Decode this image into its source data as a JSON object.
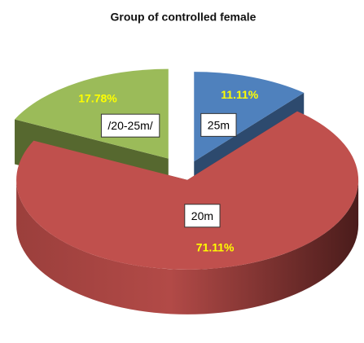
{
  "chart_data": {
    "type": "pie",
    "title": "Group of controlled female",
    "categories": [
      "25m",
      "20m",
      "/20-25m/"
    ],
    "values": [
      11.11,
      71.11,
      17.78
    ],
    "value_labels": [
      "11.11%",
      "71.11%",
      "17.78%"
    ],
    "colors": [
      "#4f81bd",
      "#c0504d",
      "#9bbb59"
    ]
  }
}
